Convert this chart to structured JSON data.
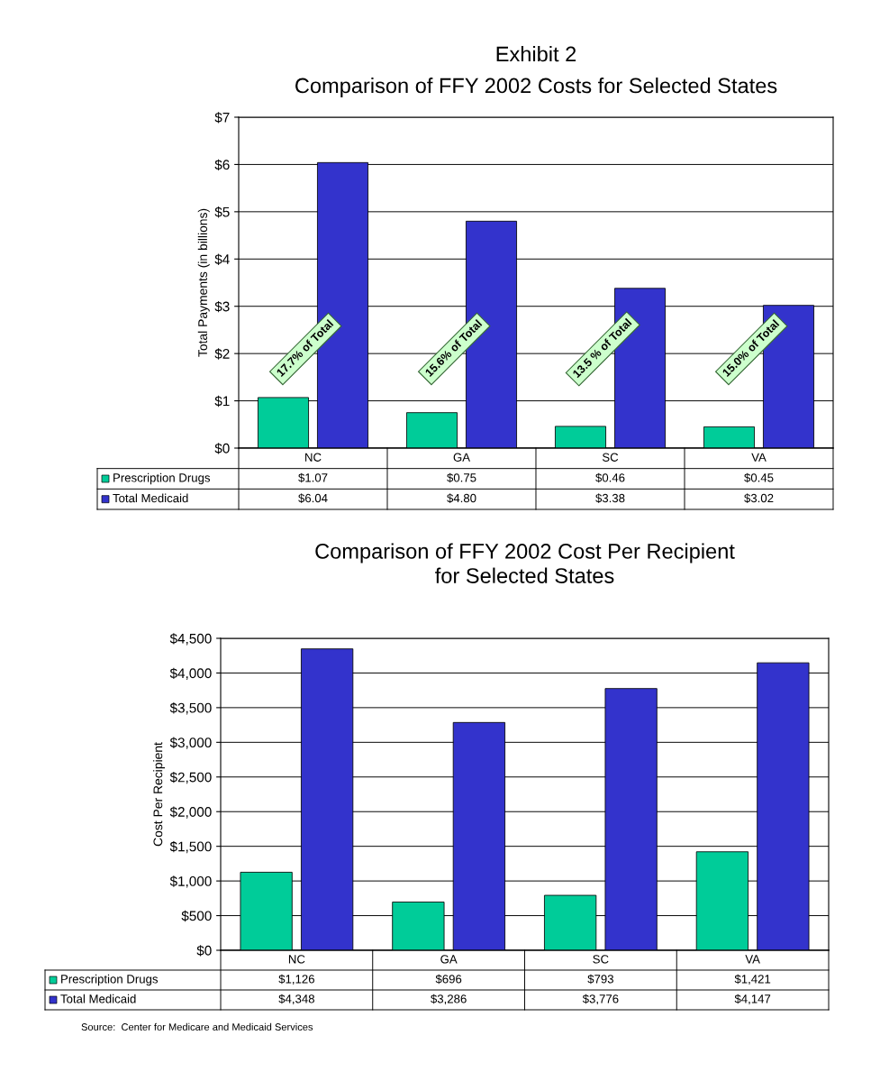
{
  "chart_data": [
    {
      "type": "bar",
      "title": "Exhibit 2",
      "subtitle": "Comparison of FFY 2002 Costs for Selected States",
      "ylabel": "Total Payments (in billions)",
      "categories": [
        "NC",
        "GA",
        "SC",
        "VA"
      ],
      "series": [
        {
          "name": "Prescription Drugs",
          "color": "#00cc99",
          "values": [
            1.07,
            0.75,
            0.46,
            0.45
          ],
          "value_labels": [
            "$1.07",
            "$0.75",
            "$0.46",
            "$0.45"
          ]
        },
        {
          "name": "Total Medicaid",
          "color": "#3333cc",
          "values": [
            6.04,
            4.8,
            3.38,
            3.02
          ],
          "value_labels": [
            "$6.04",
            "$4.80",
            "$3.38",
            "$3.02"
          ]
        }
      ],
      "ylim": [
        0,
        7
      ],
      "yticks": [
        {
          "value": 0,
          "label": "$0"
        },
        {
          "value": 1,
          "label": "$1"
        },
        {
          "value": 2,
          "label": "$2"
        },
        {
          "value": 3,
          "label": "$3"
        },
        {
          "value": 4,
          "label": "$4"
        },
        {
          "value": 5,
          "label": "$5"
        },
        {
          "value": 6,
          "label": "$6"
        },
        {
          "value": 7,
          "label": "$7"
        }
      ],
      "grid": "y",
      "tick_labels": "y",
      "legend": "bottom",
      "annotations": [
        "17.7% of Total",
        "15.6% of Total",
        "13.5 % of Total",
        "15.0% of Total"
      ]
    },
    {
      "type": "bar",
      "title": "Comparison of FFY 2002 Cost Per Recipient\nfor Selected States",
      "ylabel": "Cost Per Recipient",
      "categories": [
        "NC",
        "GA",
        "SC",
        "VA"
      ],
      "series": [
        {
          "name": "Prescription Drugs",
          "color": "#00cc99",
          "values": [
            1126,
            696,
            793,
            1421
          ],
          "value_labels": [
            "$1,126",
            "$696",
            "$793",
            "$1,421"
          ]
        },
        {
          "name": "Total Medicaid",
          "color": "#3333cc",
          "values": [
            4348,
            3286,
            3776,
            4147
          ],
          "value_labels": [
            "$4,348",
            "$3,286",
            "$3,776",
            "$4,147"
          ]
        }
      ],
      "ylim": [
        0,
        4500
      ],
      "yticks": [
        {
          "value": 0,
          "label": "$0"
        },
        {
          "value": 500,
          "label": "$500"
        },
        {
          "value": 1000,
          "label": "$1,000"
        },
        {
          "value": 1500,
          "label": "$1,500"
        },
        {
          "value": 2000,
          "label": "$2,000"
        },
        {
          "value": 2500,
          "label": "$2,500"
        },
        {
          "value": 3000,
          "label": "$3,000"
        },
        {
          "value": 3500,
          "label": "$3,500"
        },
        {
          "value": 4000,
          "label": "$4,000"
        },
        {
          "value": 4500,
          "label": "$4,500"
        }
      ],
      "grid": "y",
      "tick_labels": "y",
      "legend": "bottom",
      "annotations": [
        "Source:  Center for Medicare and Medicaid Services"
      ]
    }
  ]
}
